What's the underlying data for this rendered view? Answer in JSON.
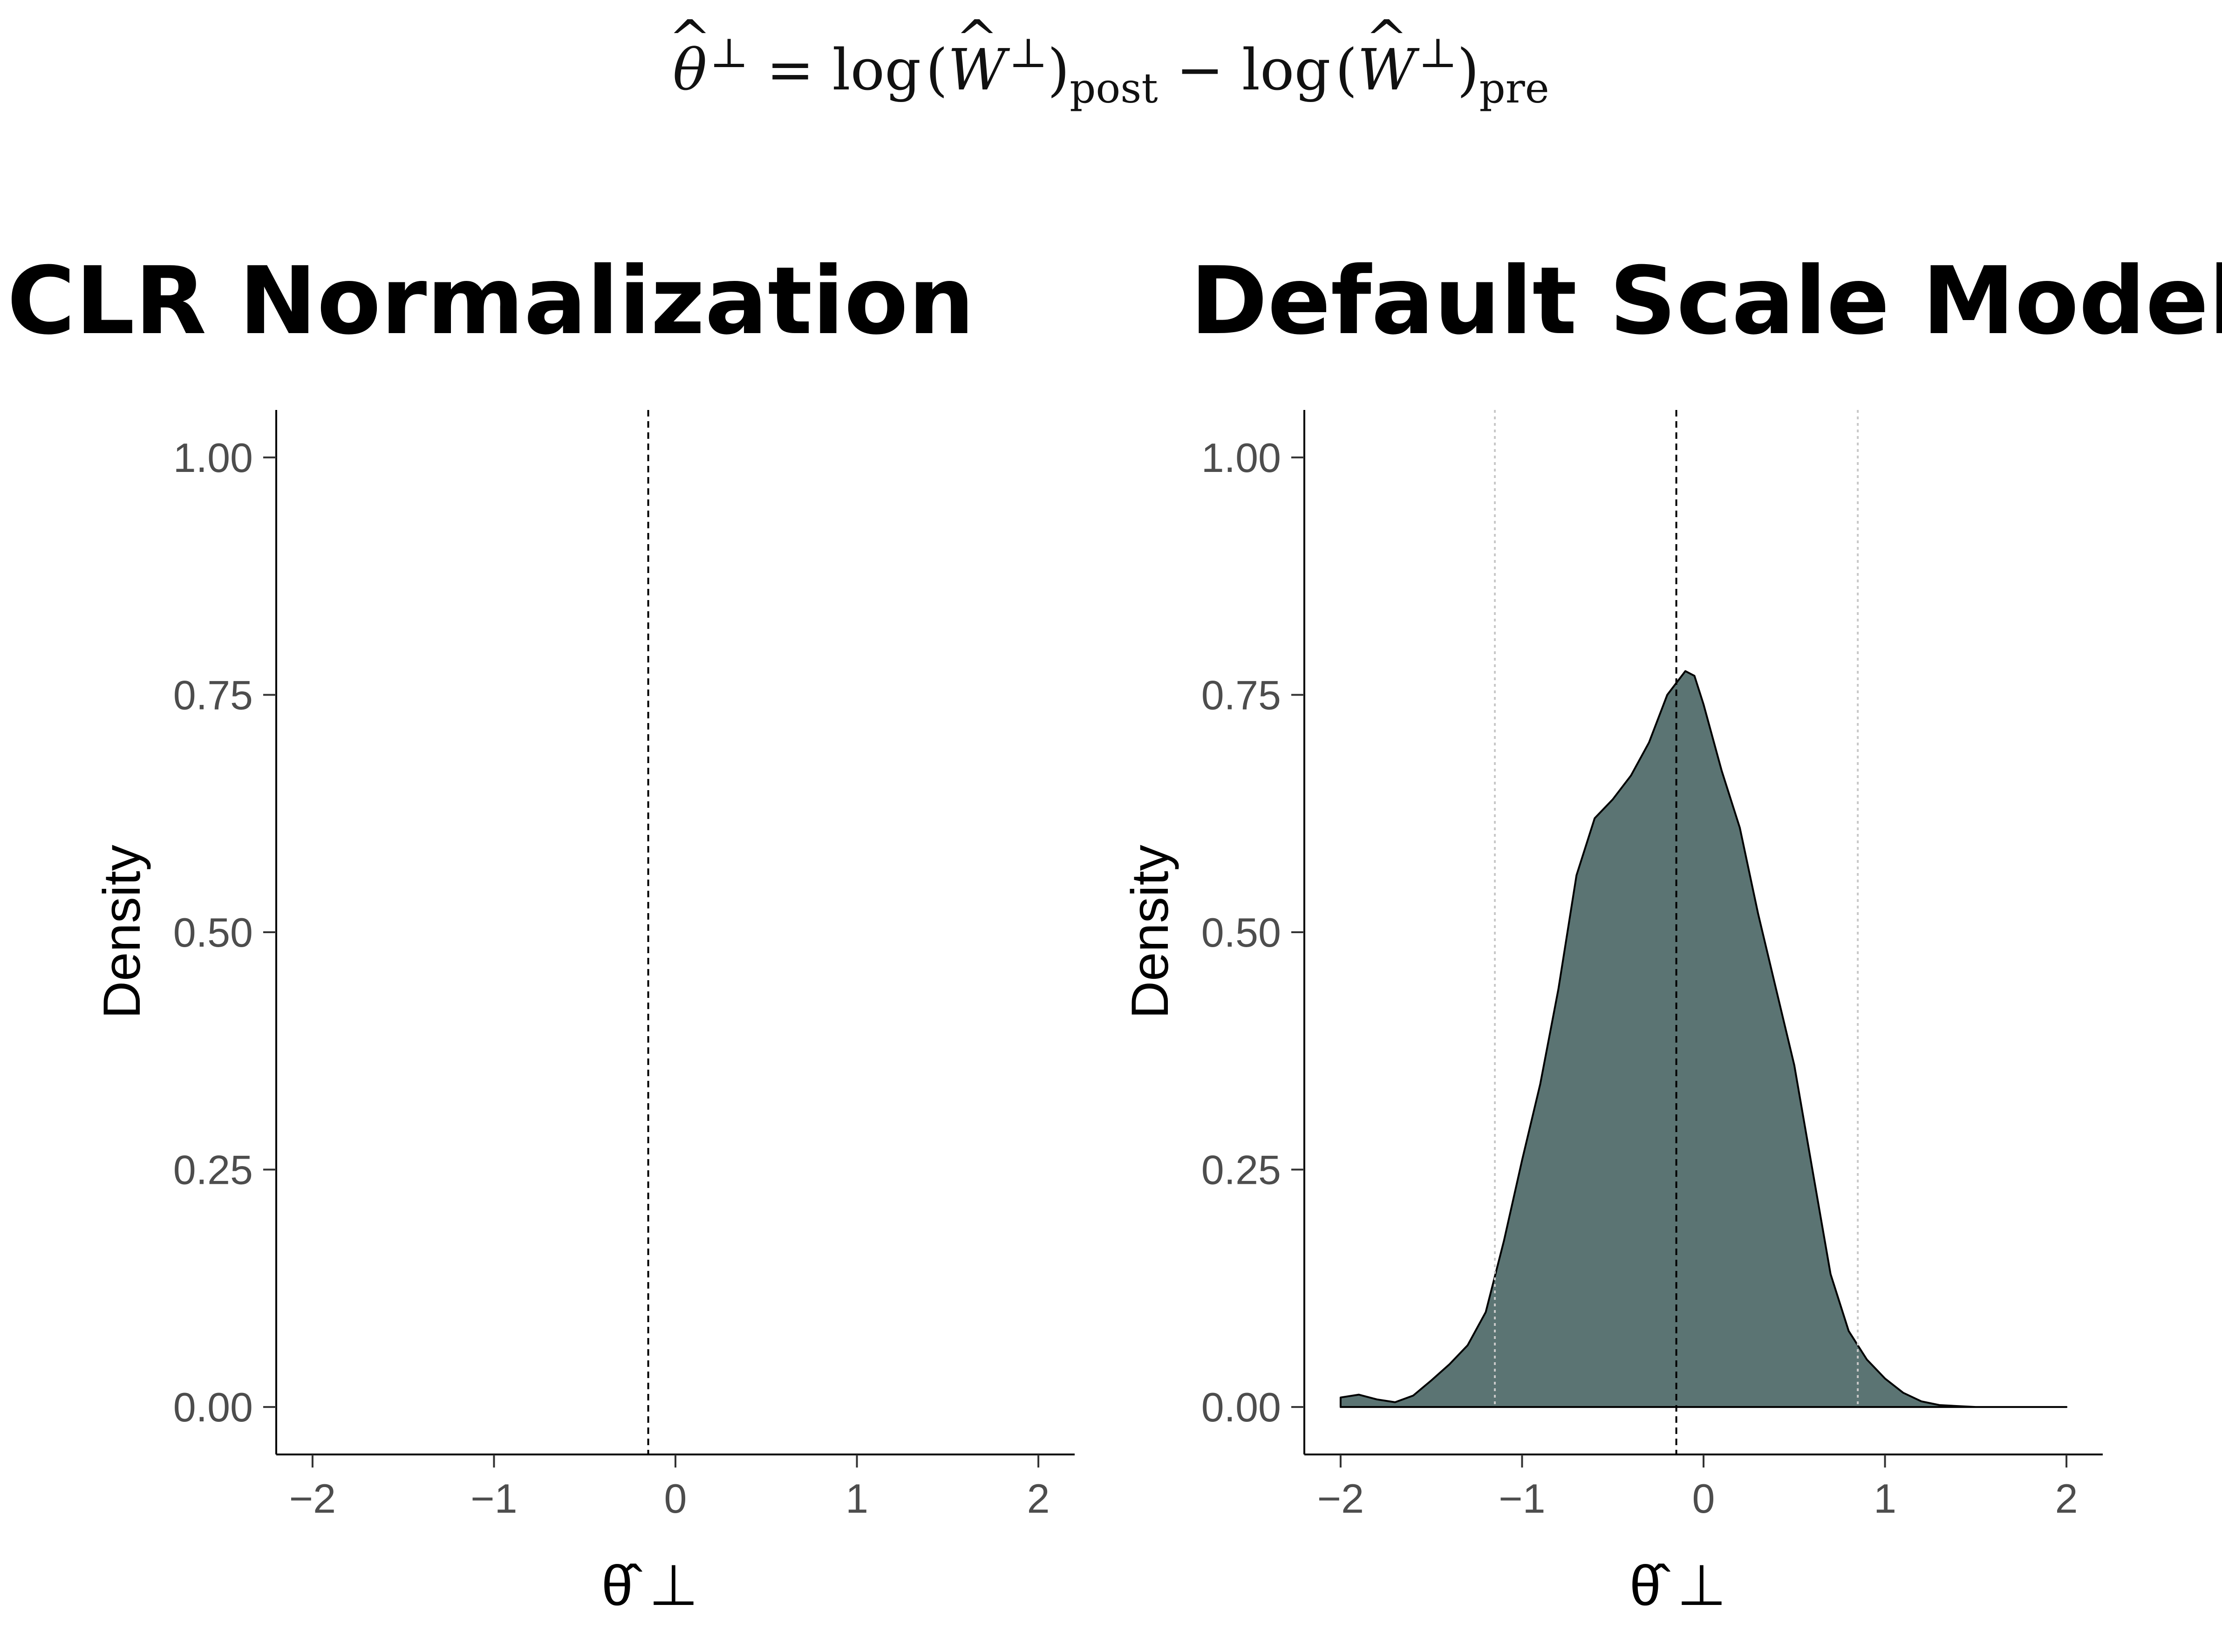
{
  "formula": {
    "lhs_symbol": "θ",
    "hat": "^",
    "perp": "⊥",
    "equals": "=",
    "minus": "−",
    "log": "log",
    "W_symbol": "W",
    "open_paren": "(",
    "close_paren": ")",
    "sub_post": "post",
    "sub_pre": "pre"
  },
  "chart_data": [
    {
      "type": "area",
      "title": "CLR Normalization",
      "xlabel": "θ̂ ⊥",
      "ylabel": "Density",
      "xlim": [
        -2.2,
        2.2
      ],
      "ylim": [
        -0.05,
        1.05
      ],
      "xticks": [
        -2,
        -1,
        0,
        1,
        2
      ],
      "xtick_labels": [
        "−2",
        "−1",
        "0",
        "1",
        "2"
      ],
      "yticks": [
        0,
        0.25,
        0.5,
        0.75,
        1.0
      ],
      "ytick_labels": [
        "0.00",
        "0.25",
        "0.50",
        "0.75",
        "1.00"
      ],
      "grid": false,
      "mean_line": -0.15,
      "interval_lines": [],
      "density": []
    },
    {
      "type": "area",
      "title": "Default Scale Model",
      "xlabel": "θ̂ ⊥",
      "ylabel": "Density",
      "xlim": [
        -2.2,
        2.2
      ],
      "ylim": [
        -0.05,
        1.05
      ],
      "xticks": [
        -2,
        -1,
        0,
        1,
        2
      ],
      "xtick_labels": [
        "−2",
        "−1",
        "0",
        "1",
        "2"
      ],
      "yticks": [
        0,
        0.25,
        0.5,
        0.75,
        1.0
      ],
      "ytick_labels": [
        "0.00",
        "0.25",
        "0.50",
        "0.75",
        "1.00"
      ],
      "grid": false,
      "mean_line": -0.15,
      "interval_lines": [
        -1.15,
        0.85
      ],
      "fill_color": "#5b7473",
      "density": {
        "x": [
          -2.0,
          -1.9,
          -1.8,
          -1.7,
          -1.6,
          -1.5,
          -1.4,
          -1.3,
          -1.2,
          -1.1,
          -1.0,
          -0.9,
          -0.8,
          -0.7,
          -0.6,
          -0.5,
          -0.4,
          -0.3,
          -0.2,
          -0.1,
          -0.05,
          0.0,
          0.1,
          0.2,
          0.3,
          0.4,
          0.5,
          0.6,
          0.7,
          0.8,
          0.9,
          1.0,
          1.1,
          1.2,
          1.3,
          1.4,
          1.5,
          1.6,
          1.7,
          1.8,
          1.9,
          2.0
        ],
        "y": [
          0.01,
          0.013,
          0.008,
          0.005,
          0.012,
          0.028,
          0.045,
          0.065,
          0.1,
          0.175,
          0.26,
          0.34,
          0.44,
          0.56,
          0.62,
          0.64,
          0.665,
          0.7,
          0.75,
          0.775,
          0.77,
          0.74,
          0.67,
          0.61,
          0.52,
          0.44,
          0.36,
          0.25,
          0.14,
          0.08,
          0.05,
          0.03,
          0.015,
          0.006,
          0.002,
          0.001,
          0,
          0,
          0,
          0,
          0,
          0
        ]
      }
    }
  ]
}
